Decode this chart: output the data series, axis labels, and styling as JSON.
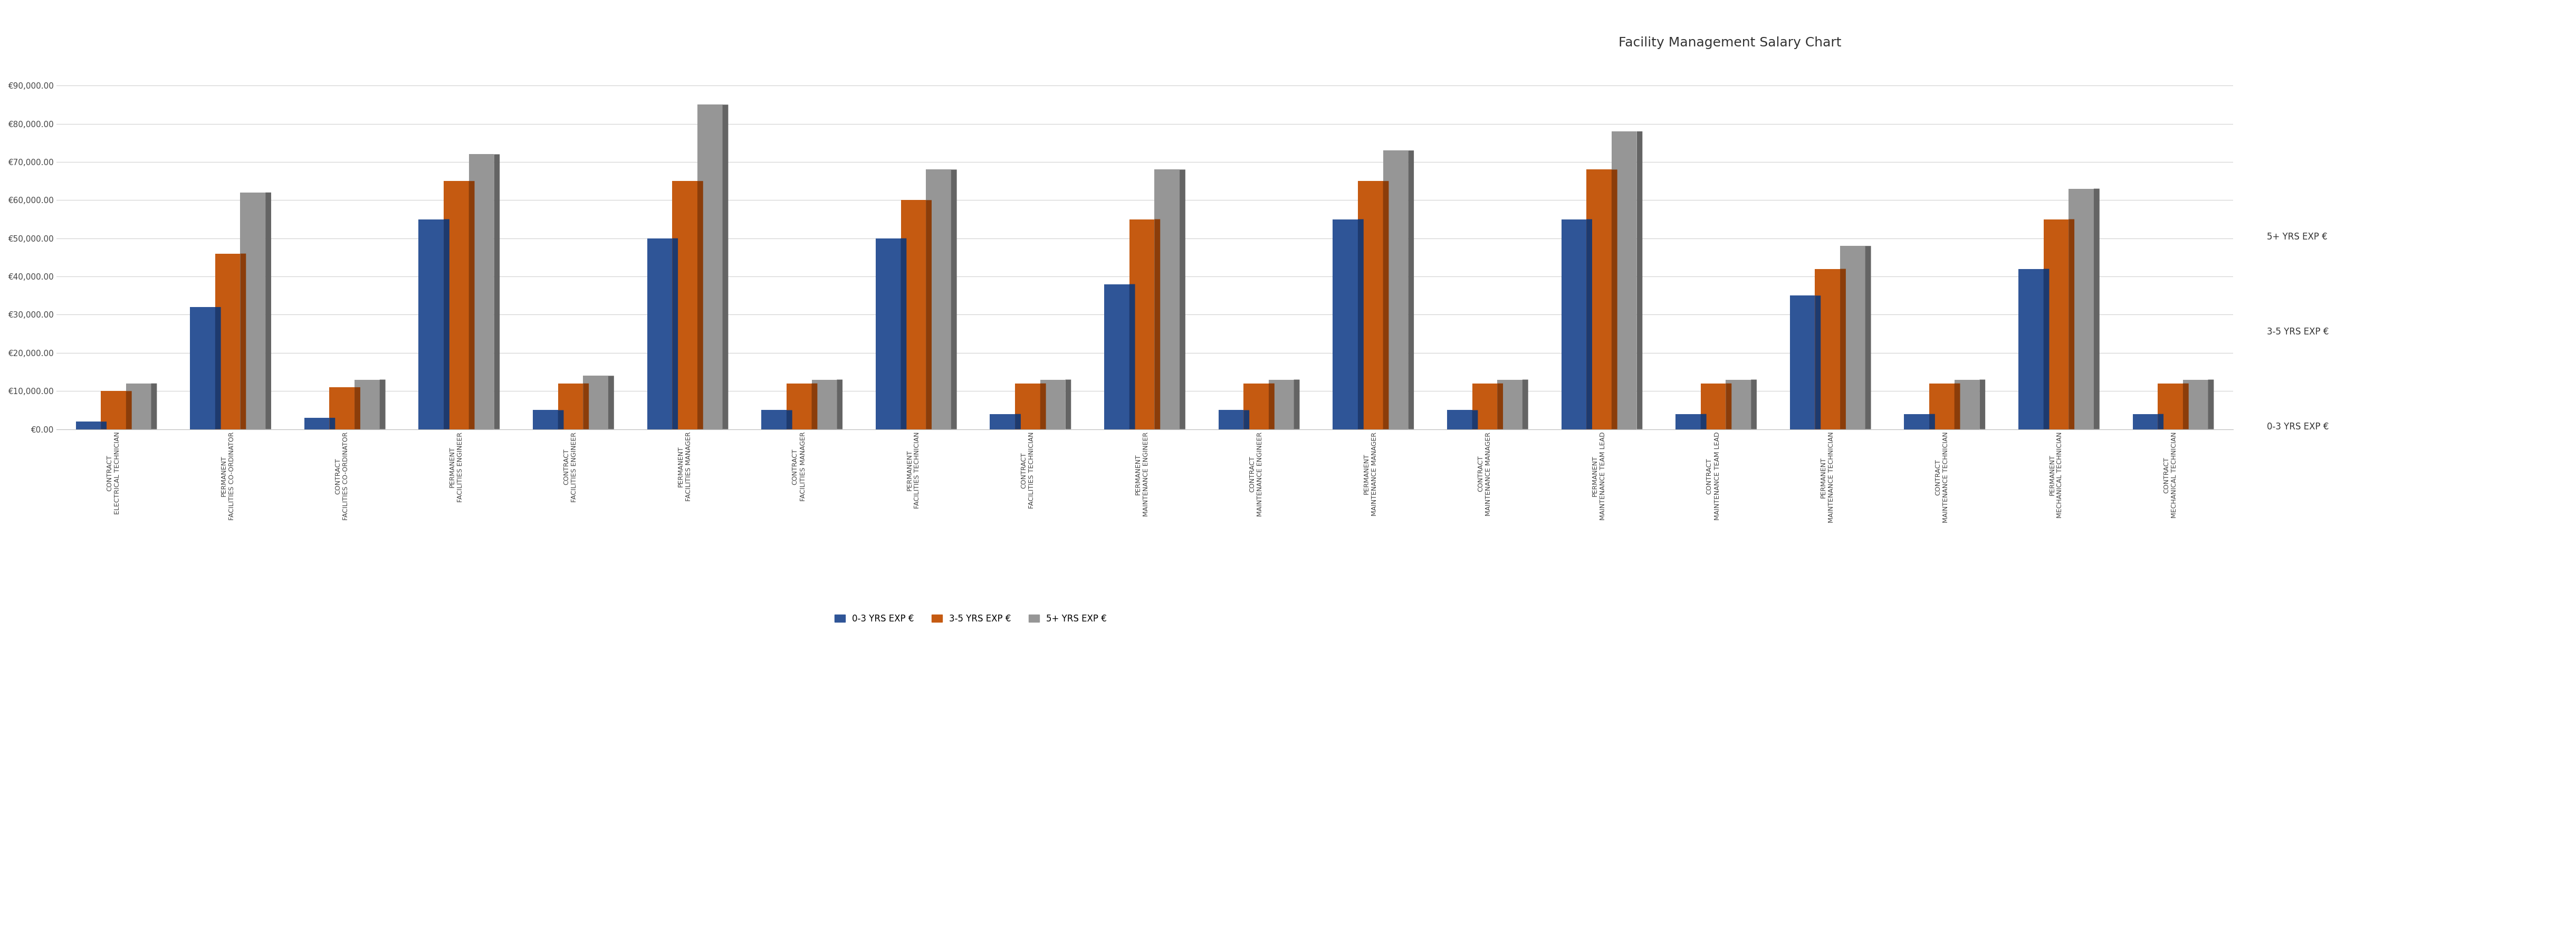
{
  "title": "Facility Management Salary Chart",
  "categories": [
    "CONTRACT\nELECTRICAL TECHNICIAN",
    "PERMANENT\nFACILITIES CO-ORDINATOR",
    "CONTRACT\nFACILITIES CO-ORDINATOR",
    "PERMANENT\nFACILITIES ENGINEER",
    "CONTRACT\nFACILITIES ENGINEER",
    "PERMANENT\nFACILITIES MANAGER",
    "CONTRACT\nFACILITIES MANAGER",
    "PERMANENT\nFACILITIES TECHNICIAN",
    "CONTRACT\nFACILITIES TECHNICIAN",
    "PERMANENT\nMAINTENANCE ENGINEER",
    "CONTRACT\nMAINTENANCE ENGINEER",
    "PERMANENT\nMAINTENANCE MANAGER",
    "CONTRACT\nMAINTENANCE MANAGER",
    "PERMANENT\nMAINTENANCE TEAM LEAD",
    "CONTRACT\nMAINTENANCE TEAM LEAD",
    "PERMANENT\nMAINTENANCE TECHNICIAN",
    "CONTRACT\nMAINTENANCE TECHNICIAN",
    "PERMANENT\nMECHANICAL TECHNICIAN",
    "CONTRACT\nMECHANICAL TECHNICIAN"
  ],
  "series": [
    {
      "label": "0-3 YRS EXP €",
      "color": "#2F5597",
      "top_color": "#3A6BC9",
      "side_color": "#1E3A6E",
      "values": [
        2000,
        32000,
        3000,
        55000,
        5000,
        50000,
        5000,
        50000,
        4000,
        38000,
        5000,
        55000,
        5000,
        55000,
        4000,
        35000,
        4000,
        42000,
        4000
      ]
    },
    {
      "label": "3-5 YRS EXP €",
      "color": "#C55A11",
      "top_color": "#E87030",
      "side_color": "#8B3D0A",
      "values": [
        10000,
        46000,
        11000,
        65000,
        12000,
        65000,
        12000,
        60000,
        12000,
        55000,
        12000,
        65000,
        12000,
        68000,
        12000,
        42000,
        12000,
        55000,
        12000
      ]
    },
    {
      "label": "5+ YRS EXP €",
      "color": "#969696",
      "top_color": "#C0C0C0",
      "side_color": "#646464",
      "values": [
        12000,
        62000,
        13000,
        72000,
        14000,
        85000,
        13000,
        68000,
        13000,
        68000,
        13000,
        73000,
        13000,
        78000,
        13000,
        48000,
        13000,
        63000,
        13000
      ]
    }
  ],
  "ylim": [
    0,
    90000
  ],
  "ytick_interval": 10000,
  "background_color": "#FFFFFF",
  "plot_bg_color": "#FFFFFF",
  "title_fontsize": 18,
  "ytick_fontsize": 11,
  "xtick_fontsize": 9,
  "legend_fontsize": 12,
  "bar_width": 0.22,
  "bar_depth": 0.06,
  "grid_color": "#D0D0D0",
  "right_legend": [
    "5+ YRS EXP €",
    "3-5 YRS EXP €",
    "0-3 YRS EXP €"
  ],
  "right_legend_colors": [
    "#969696",
    "#C55A11",
    "#2F5597"
  ]
}
